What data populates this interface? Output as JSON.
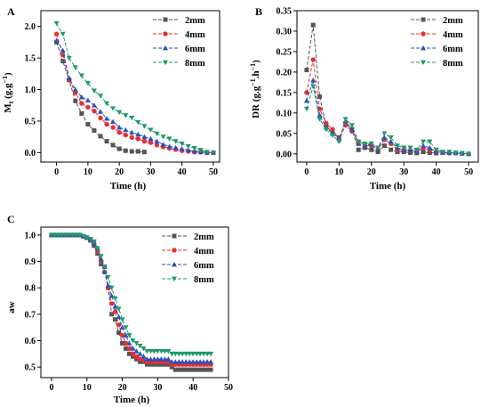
{
  "chart_data": [
    {
      "panel": "A",
      "type": "line",
      "xlabel": "Time (h)",
      "ylabel_main": "M",
      "ylabel_sub": "t",
      "ylabel_unit": " (g.g",
      "ylabel_exp": "−1",
      "ylabel_close": ")",
      "xlim": [
        -5,
        52
      ],
      "ylim": [
        -0.15,
        2.25
      ],
      "xticks": [
        0,
        10,
        20,
        30,
        40,
        50
      ],
      "yticks": [
        0.0,
        0.5,
        1.0,
        1.5,
        2.0
      ],
      "ytick_labels": [
        "0.0",
        "0.5",
        "1.0",
        "1.5",
        "2.0"
      ],
      "legend_position": "top-right",
      "series": [
        {
          "name": "2mm",
          "color": "#555555",
          "marker": "square",
          "x": [
            0,
            2,
            4,
            6,
            8,
            10,
            12,
            14,
            16,
            18,
            20,
            22,
            24,
            26,
            28
          ],
          "y": [
            1.75,
            1.45,
            1.15,
            0.82,
            0.62,
            0.45,
            0.35,
            0.26,
            0.18,
            0.12,
            0.06,
            0.03,
            0.02,
            0.02,
            0.01
          ]
        },
        {
          "name": "4mm",
          "color": "#e8302f",
          "marker": "circle",
          "x": [
            0,
            2,
            4,
            6,
            8,
            10,
            12,
            14,
            16,
            18,
            20,
            22,
            24,
            26,
            28,
            30,
            32,
            34,
            36,
            38,
            40,
            42,
            44,
            46,
            48,
            50
          ],
          "y": [
            1.88,
            1.55,
            1.16,
            0.95,
            0.78,
            0.72,
            0.66,
            0.55,
            0.45,
            0.4,
            0.32,
            0.28,
            0.24,
            0.22,
            0.18,
            0.16,
            0.12,
            0.09,
            0.07,
            0.05,
            0.03,
            0.02,
            0.01,
            0.01,
            0.0,
            0.0
          ]
        },
        {
          "name": "6mm",
          "color": "#2d4fbd",
          "marker": "triangle",
          "x": [
            0,
            2,
            4,
            6,
            8,
            10,
            12,
            14,
            16,
            18,
            20,
            22,
            24,
            26,
            28,
            30,
            32,
            34,
            36,
            38,
            40,
            42,
            44,
            46,
            48,
            50
          ],
          "y": [
            1.78,
            1.62,
            1.18,
            1.0,
            0.88,
            0.83,
            0.75,
            0.65,
            0.54,
            0.49,
            0.4,
            0.36,
            0.32,
            0.29,
            0.25,
            0.22,
            0.18,
            0.13,
            0.1,
            0.08,
            0.06,
            0.04,
            0.02,
            0.01,
            0.0,
            0.0
          ]
        },
        {
          "name": "8mm",
          "color": "#1f9a6a",
          "marker": "triangle-down",
          "x": [
            0,
            2,
            4,
            6,
            8,
            10,
            12,
            14,
            16,
            18,
            20,
            22,
            24,
            26,
            28,
            30,
            32,
            34,
            36,
            38,
            40,
            42,
            44,
            46,
            48,
            50
          ],
          "y": [
            2.05,
            1.88,
            1.5,
            1.35,
            1.22,
            1.1,
            0.98,
            0.9,
            0.78,
            0.7,
            0.64,
            0.59,
            0.55,
            0.48,
            0.42,
            0.36,
            0.3,
            0.25,
            0.22,
            0.18,
            0.14,
            0.1,
            0.07,
            0.04,
            0.01,
            0.0
          ]
        }
      ]
    },
    {
      "panel": "B",
      "type": "line",
      "xlabel": "Time (h)",
      "ylabel_main": "DR (g.g",
      "ylabel_exp1": "−1",
      "ylabel_mid": ".h",
      "ylabel_exp2": "−1",
      "ylabel_close": ")",
      "xlim": [
        -3,
        53
      ],
      "ylim": [
        -0.02,
        0.35
      ],
      "xticks": [
        0,
        10,
        20,
        30,
        40,
        50
      ],
      "yticks": [
        0.0,
        0.05,
        0.1,
        0.15,
        0.2,
        0.25,
        0.3,
        0.35
      ],
      "ytick_labels": [
        "0.00",
        "0.05",
        "0.10",
        "0.15",
        "0.20",
        "0.25",
        "0.30",
        "0.35"
      ],
      "legend_position": "top-right",
      "series": [
        {
          "name": "2mm",
          "color": "#555555",
          "marker": "square",
          "x": [
            0,
            2,
            4,
            6,
            8,
            10,
            12,
            14,
            16,
            18,
            20,
            22,
            24,
            26,
            28,
            30,
            32,
            34,
            36,
            38,
            40
          ],
          "y": [
            0.205,
            0.315,
            0.14,
            0.07,
            0.05,
            0.04,
            0.075,
            0.06,
            0.01,
            0.015,
            0.01,
            0.005,
            0.02,
            0.01,
            0.005,
            0.005,
            0.003,
            0.002,
            0.005,
            0.003,
            0.002
          ]
        },
        {
          "name": "4mm",
          "color": "#e8302f",
          "marker": "circle",
          "x": [
            0,
            2,
            4,
            6,
            8,
            10,
            12,
            14,
            16,
            18,
            20,
            22,
            24,
            26,
            28,
            30,
            32,
            34,
            36,
            38,
            40,
            42,
            44,
            46,
            48,
            50
          ],
          "y": [
            0.15,
            0.23,
            0.11,
            0.075,
            0.06,
            0.035,
            0.07,
            0.055,
            0.03,
            0.02,
            0.02,
            0.01,
            0.035,
            0.025,
            0.01,
            0.01,
            0.008,
            0.005,
            0.015,
            0.01,
            0.005,
            0.003,
            0.002,
            0.002,
            0.001,
            0.0
          ]
        },
        {
          "name": "6mm",
          "color": "#2d4fbd",
          "marker": "triangle",
          "x": [
            0,
            2,
            4,
            6,
            8,
            10,
            12,
            14,
            16,
            18,
            20,
            22,
            24,
            26,
            28,
            30,
            32,
            34,
            36,
            38,
            40,
            42,
            44,
            46,
            48,
            50
          ],
          "y": [
            0.13,
            0.18,
            0.095,
            0.065,
            0.05,
            0.035,
            0.08,
            0.06,
            0.025,
            0.02,
            0.025,
            0.01,
            0.04,
            0.03,
            0.015,
            0.01,
            0.01,
            0.005,
            0.02,
            0.015,
            0.005,
            0.003,
            0.003,
            0.002,
            0.001,
            0.0
          ]
        },
        {
          "name": "8mm",
          "color": "#1f9a6a",
          "marker": "triangle-down",
          "x": [
            0,
            2,
            4,
            6,
            8,
            10,
            12,
            14,
            16,
            18,
            20,
            22,
            24,
            26,
            28,
            30,
            32,
            34,
            36,
            38,
            40,
            42,
            44,
            46,
            48,
            50
          ],
          "y": [
            0.11,
            0.165,
            0.085,
            0.06,
            0.045,
            0.03,
            0.085,
            0.07,
            0.03,
            0.025,
            0.025,
            0.015,
            0.05,
            0.04,
            0.02,
            0.015,
            0.015,
            0.01,
            0.03,
            0.03,
            0.01,
            0.005,
            0.005,
            0.003,
            0.002,
            0.0
          ]
        }
      ]
    },
    {
      "panel": "C",
      "type": "line",
      "xlabel": "Time (h)",
      "ylabel": "aw",
      "xlim": [
        -3,
        50
      ],
      "ylim": [
        0.46,
        1.03
      ],
      "xticks": [
        0,
        10,
        20,
        30,
        40,
        50
      ],
      "yticks": [
        0.5,
        0.6,
        0.7,
        0.8,
        0.9,
        1.0
      ],
      "ytick_labels": [
        "0.5",
        "0.6",
        "0.7",
        "0.8",
        "0.9",
        "1.0"
      ],
      "legend_position": "top-right",
      "series": [
        {
          "name": "2mm",
          "color": "#555555",
          "marker": "square",
          "x": [
            0,
            1,
            2,
            3,
            4,
            5,
            6,
            7,
            8,
            9,
            10,
            11,
            12,
            13,
            14,
            15,
            16,
            17,
            18,
            19,
            20,
            21,
            22,
            23,
            24,
            25,
            26,
            27,
            28,
            29,
            30,
            31,
            32,
            33,
            34,
            35,
            36,
            37,
            38,
            39,
            40,
            41,
            42,
            43,
            44,
            45
          ],
          "y": [
            1.0,
            1.0,
            1.0,
            1.0,
            1.0,
            1.0,
            1.0,
            1.0,
            1.0,
            0.995,
            0.99,
            0.98,
            0.96,
            0.93,
            0.89,
            0.88,
            0.8,
            0.7,
            0.68,
            0.63,
            0.59,
            0.57,
            0.55,
            0.54,
            0.53,
            0.52,
            0.52,
            0.51,
            0.51,
            0.51,
            0.51,
            0.51,
            0.51,
            0.51,
            0.5,
            0.49,
            0.49,
            0.49,
            0.49,
            0.49,
            0.49,
            0.49,
            0.49,
            0.49,
            0.49,
            0.49
          ]
        },
        {
          "name": "4mm",
          "color": "#e8302f",
          "marker": "circle",
          "x": [
            0,
            1,
            2,
            3,
            4,
            5,
            6,
            7,
            8,
            9,
            10,
            11,
            12,
            13,
            14,
            15,
            16,
            17,
            18,
            19,
            20,
            21,
            22,
            23,
            24,
            25,
            26,
            27,
            28,
            29,
            30,
            31,
            32,
            33,
            34,
            35,
            36,
            37,
            38,
            39,
            40,
            41,
            42,
            43,
            44,
            45
          ],
          "y": [
            1.0,
            1.0,
            1.0,
            1.0,
            1.0,
            1.0,
            1.0,
            1.0,
            1.0,
            0.995,
            0.99,
            0.98,
            0.97,
            0.94,
            0.9,
            0.86,
            0.8,
            0.74,
            0.71,
            0.66,
            0.62,
            0.59,
            0.57,
            0.55,
            0.54,
            0.53,
            0.53,
            0.52,
            0.52,
            0.52,
            0.52,
            0.52,
            0.52,
            0.52,
            0.51,
            0.51,
            0.51,
            0.51,
            0.51,
            0.51,
            0.51,
            0.51,
            0.51,
            0.51,
            0.51,
            0.51
          ]
        },
        {
          "name": "6mm",
          "color": "#2d4fbd",
          "marker": "triangle",
          "x": [
            0,
            1,
            2,
            3,
            4,
            5,
            6,
            7,
            8,
            9,
            10,
            11,
            12,
            13,
            14,
            15,
            16,
            17,
            18,
            19,
            20,
            21,
            22,
            23,
            24,
            25,
            26,
            27,
            28,
            29,
            30,
            31,
            32,
            33,
            34,
            35,
            36,
            37,
            38,
            39,
            40,
            41,
            42,
            43,
            44,
            45
          ],
          "y": [
            1.0,
            1.0,
            1.0,
            1.0,
            1.0,
            1.0,
            1.0,
            1.0,
            1.0,
            0.995,
            0.99,
            0.98,
            0.97,
            0.95,
            0.91,
            0.86,
            0.81,
            0.77,
            0.73,
            0.69,
            0.65,
            0.62,
            0.59,
            0.57,
            0.56,
            0.55,
            0.54,
            0.53,
            0.53,
            0.53,
            0.53,
            0.53,
            0.53,
            0.53,
            0.52,
            0.52,
            0.52,
            0.52,
            0.52,
            0.52,
            0.52,
            0.52,
            0.52,
            0.52,
            0.52,
            0.52
          ]
        },
        {
          "name": "8mm",
          "color": "#1f9a6a",
          "marker": "triangle-down",
          "x": [
            0,
            1,
            2,
            3,
            4,
            5,
            6,
            7,
            8,
            9,
            10,
            11,
            12,
            13,
            14,
            15,
            16,
            17,
            18,
            19,
            20,
            21,
            22,
            23,
            24,
            25,
            26,
            27,
            28,
            29,
            30,
            31,
            32,
            33,
            34,
            35,
            36,
            37,
            38,
            39,
            40,
            41,
            42,
            43,
            44,
            45
          ],
          "y": [
            1.0,
            1.0,
            1.0,
            1.0,
            1.0,
            1.0,
            1.0,
            1.0,
            1.0,
            0.995,
            0.99,
            0.985,
            0.975,
            0.95,
            0.92,
            0.88,
            0.84,
            0.8,
            0.76,
            0.72,
            0.68,
            0.65,
            0.62,
            0.6,
            0.59,
            0.58,
            0.57,
            0.56,
            0.56,
            0.56,
            0.56,
            0.56,
            0.56,
            0.56,
            0.55,
            0.55,
            0.55,
            0.55,
            0.55,
            0.55,
            0.55,
            0.55,
            0.55,
            0.55,
            0.55,
            0.55
          ]
        }
      ]
    }
  ]
}
